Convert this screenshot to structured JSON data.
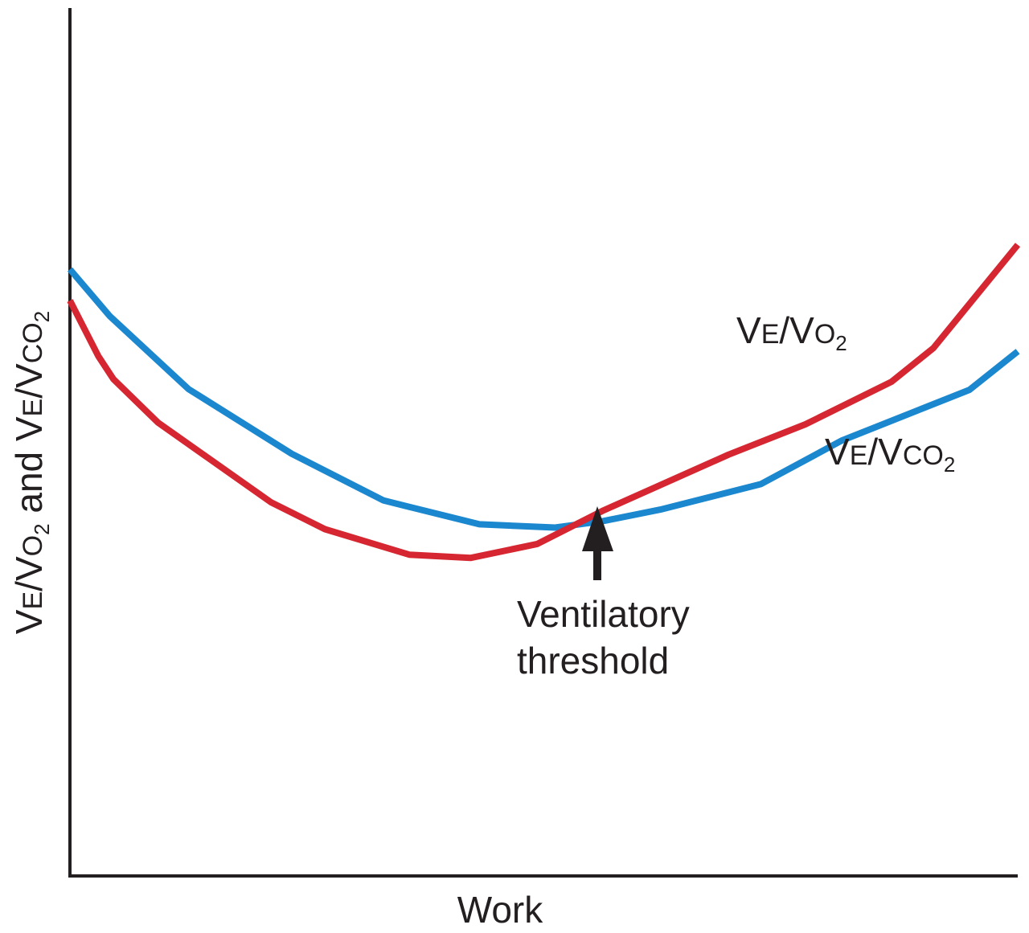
{
  "chart_data": {
    "type": "line",
    "title": "",
    "xlabel": "Work",
    "ylabel": {
      "main1": "V",
      "sc1": "E",
      "main2": "/V",
      "sc2": "O",
      "sub1": "2",
      "mid": " and ",
      "main3": "V",
      "sc3": "E",
      "main4": "/V",
      "sc4": "CO",
      "sub2": "2"
    },
    "xlim": [
      0,
      100
    ],
    "ylim": [
      0,
      100
    ],
    "grid": false,
    "series": [
      {
        "id": "ve-vco2",
        "color": "#1a87cf",
        "label": {
          "main1": "V",
          "sc1": "E",
          "main2": "/V",
          "sc2": "CO",
          "sub": "2"
        },
        "x": [
          0,
          4.2,
          12.5,
          23.4,
          33.1,
          43.2,
          51.2,
          56.3,
          62.3,
          72.9,
          81.4,
          94.9,
          100
        ],
        "y": [
          74.0,
          68.3,
          59.4,
          51.5,
          45.8,
          42.9,
          42.5,
          43.3,
          44.7,
          47.8,
          53.1,
          59.3,
          64.0
        ]
      },
      {
        "id": "ve-vo2",
        "color": "#d62631",
        "label": {
          "main1": "V",
          "sc1": "E",
          "main2": "/V",
          "sc2": "O",
          "sub": "2"
        },
        "x": [
          0,
          3.0,
          4.6,
          9.3,
          21.2,
          26.9,
          35.8,
          42.3,
          49.3,
          56.3,
          69.5,
          77.6,
          86.7,
          91.1,
          100
        ],
        "y": [
          70.2,
          63.4,
          60.6,
          55.3,
          45.6,
          42.3,
          39.2,
          38.8,
          40.5,
          44.6,
          51.4,
          55.1,
          60.3,
          64.4,
          77.0
        ]
      }
    ],
    "annotations": [
      {
        "id": "ventilatory-threshold",
        "lines": [
          "Ventilatory",
          "threshold"
        ],
        "x": 56.3,
        "y": 44.6
      }
    ],
    "colors": {
      "axis": "#231f20",
      "text": "#231f20"
    }
  }
}
